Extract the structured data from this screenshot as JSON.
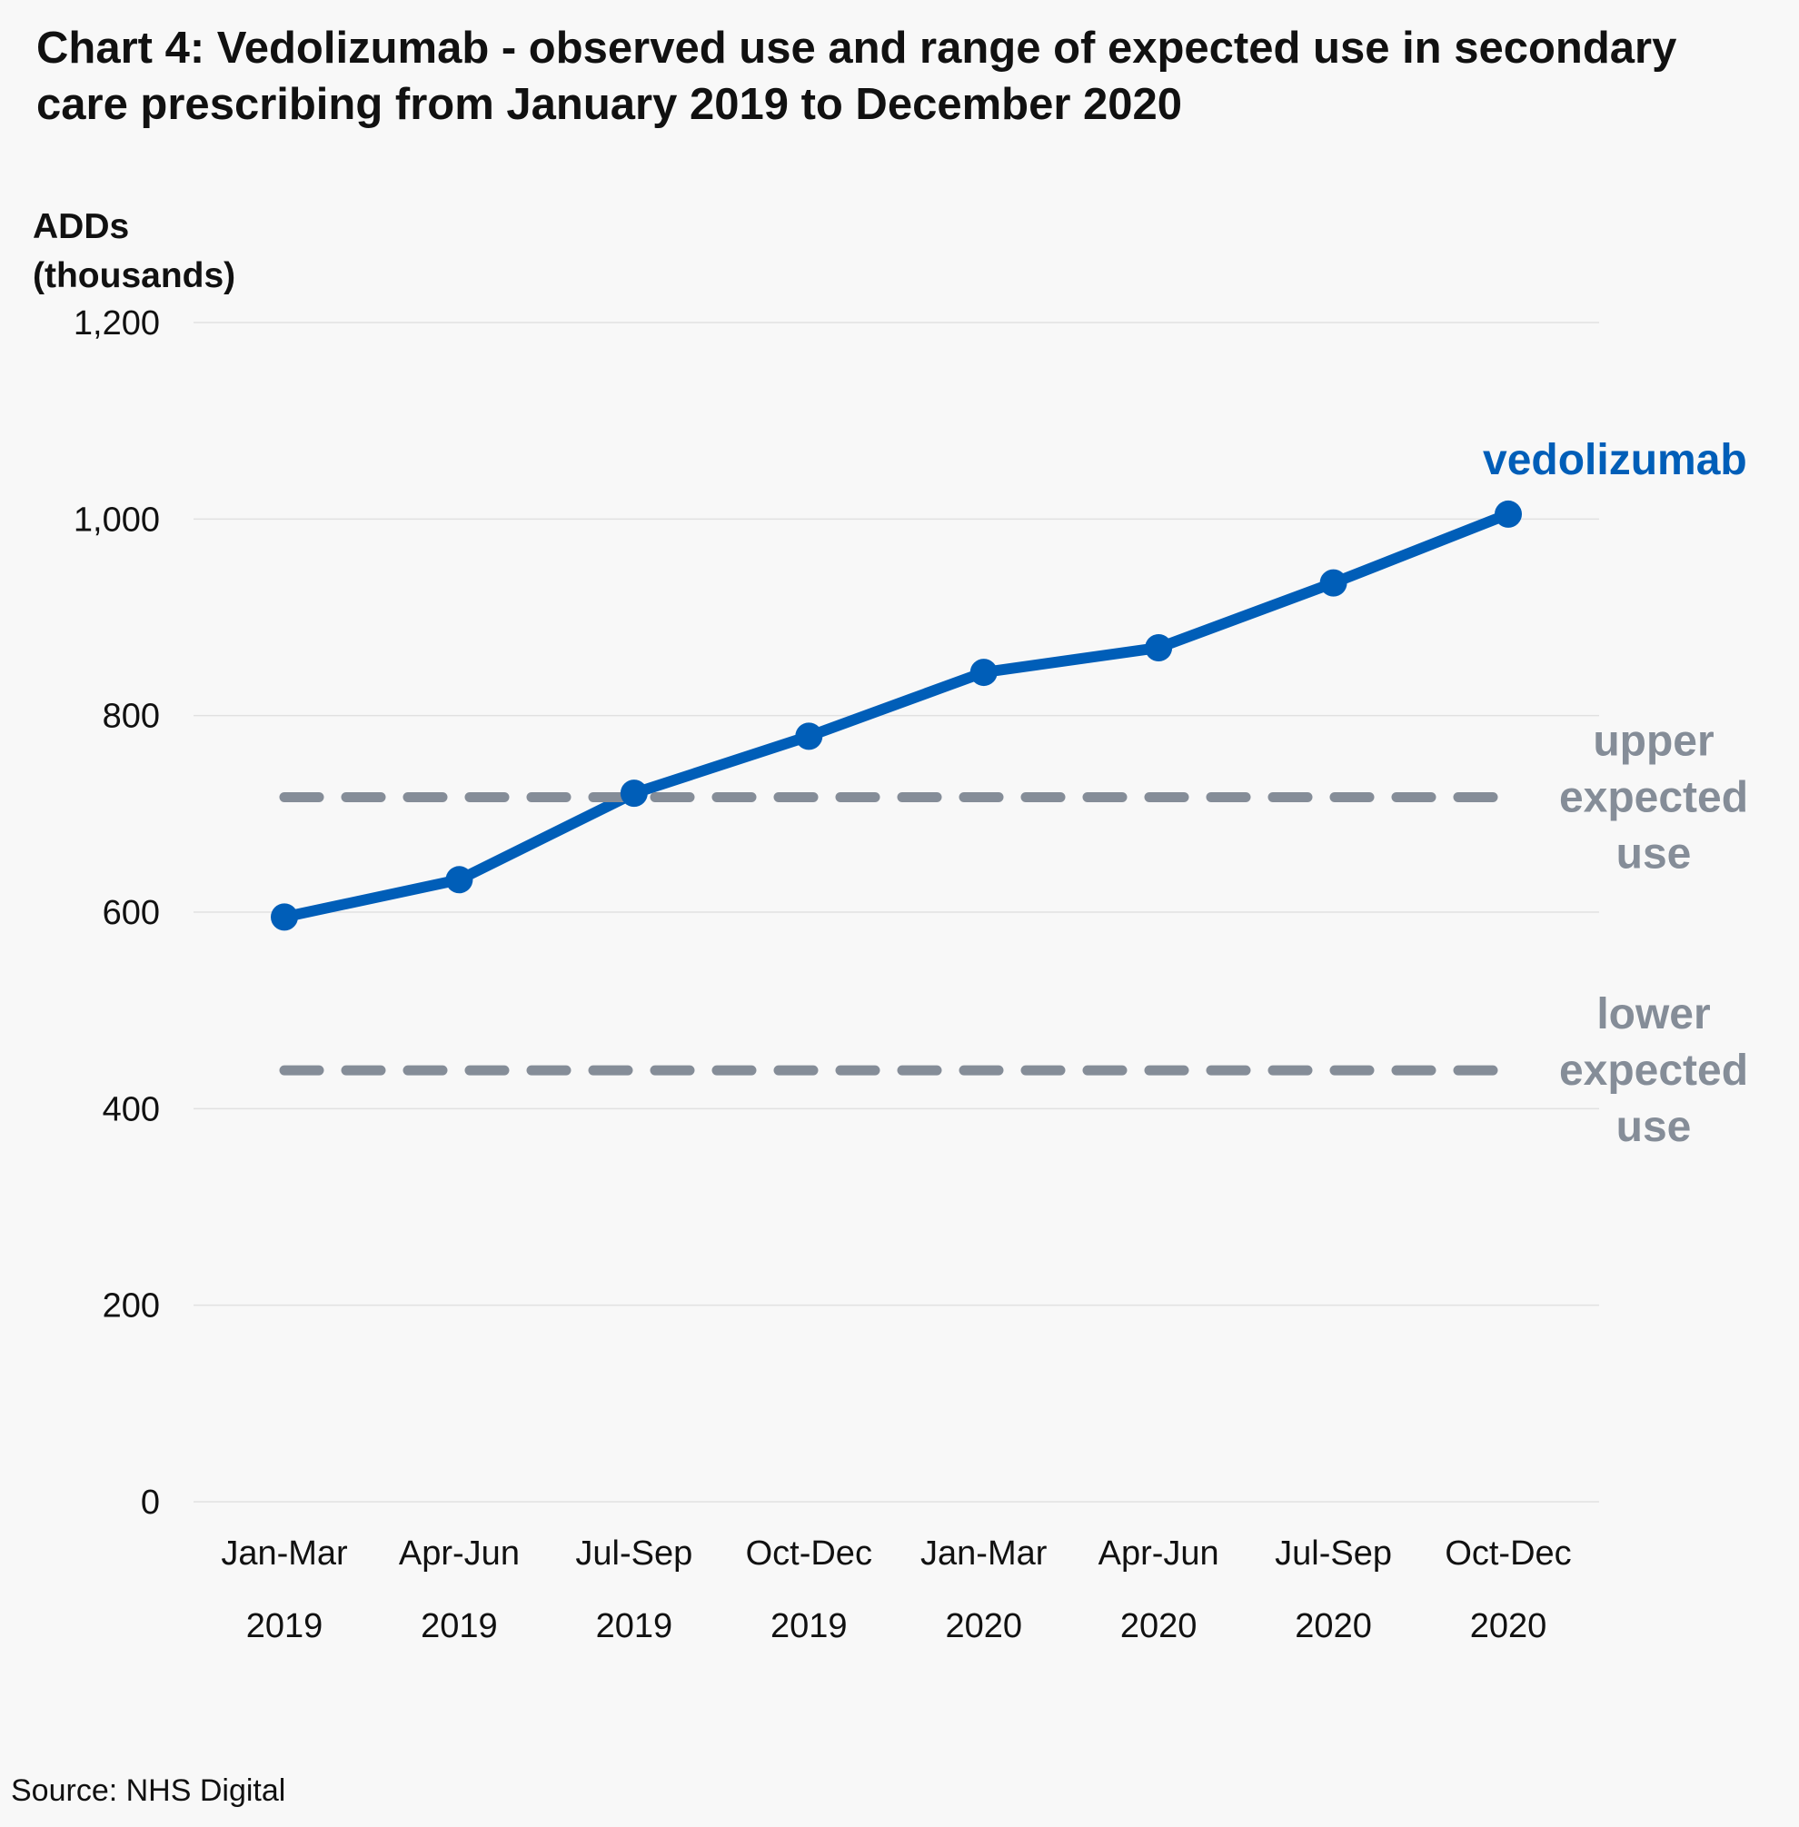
{
  "chart_data": {
    "type": "line",
    "title": "Chart 4: Vedolizumab - observed use and range of expected use in secondary care prescribing from January 2019 to December 2020",
    "ylabel": [
      "ADDs",
      "(thousands)"
    ],
    "xlabel": "",
    "ylim": [
      0,
      1200
    ],
    "yticks": [
      0,
      200,
      400,
      600,
      800,
      1000,
      1200
    ],
    "ytick_labels": [
      "0",
      "200",
      "400",
      "600",
      "800",
      "1,000",
      "1,200"
    ],
    "grid": "horizontal",
    "categories": [
      [
        "Jan-Mar",
        "2019"
      ],
      [
        "Apr-Jun",
        "2019"
      ],
      [
        "Jul-Sep",
        "2019"
      ],
      [
        "Oct-Dec",
        "2019"
      ],
      [
        "Jan-Mar",
        "2020"
      ],
      [
        "Apr-Jun",
        "2020"
      ],
      [
        "Jul-Sep",
        "2020"
      ],
      [
        "Oct-Dec",
        "2020"
      ]
    ],
    "series": [
      {
        "name": "vedolizumab",
        "label_lines": [
          "vedolizumab"
        ],
        "style": "solid-with-markers",
        "color": "#005eb8",
        "values": [
          595,
          633,
          721,
          779,
          844,
          869,
          935,
          1005
        ]
      },
      {
        "name": "upper expected use",
        "label_lines": [
          "upper",
          "expected",
          "use"
        ],
        "style": "dashed",
        "color": "#858d98",
        "values": [
          717,
          717,
          717,
          717,
          717,
          717,
          717,
          717
        ]
      },
      {
        "name": "lower expected use",
        "label_lines": [
          "lower",
          "expected",
          "use"
        ],
        "style": "dashed",
        "color": "#858d98",
        "values": [
          439,
          439,
          439,
          439,
          439,
          439,
          439,
          439
        ]
      }
    ],
    "legend": "direct-labels-right",
    "source": "Source: NHS Digital"
  }
}
